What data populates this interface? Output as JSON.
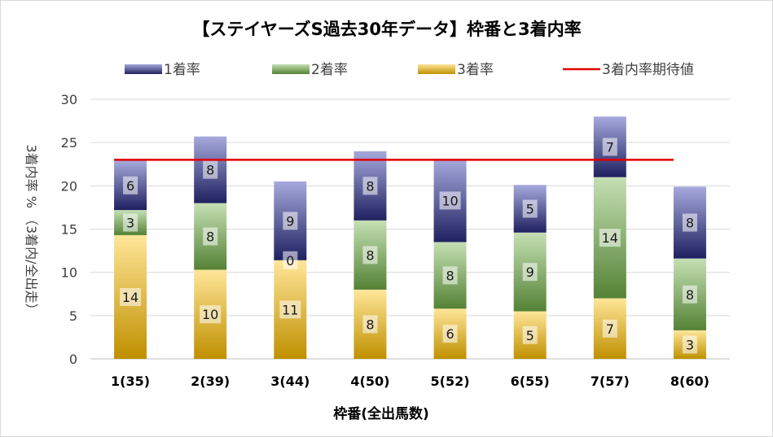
{
  "chart_data": {
    "type": "bar",
    "stacked": true,
    "title": "【ステイヤーズS過去30年データ】枠番と3着内率",
    "xlabel": "枠番(全出馬数)",
    "ylabel": "3着内率 % （3着内/全出走）",
    "ylim": [
      0,
      30
    ],
    "yticks": [
      0,
      5,
      10,
      15,
      20,
      25,
      30
    ],
    "grid": true,
    "legend_position": "top",
    "categories": [
      "1(35)",
      "2(39)",
      "3(44)",
      "4(50)",
      "5(52)",
      "6(55)",
      "7(57)",
      "8(60)"
    ],
    "series": [
      {
        "name": "3着率",
        "color_top": "#ffe699",
        "color_bottom": "#bf9000",
        "values": [
          14.3,
          10.3,
          11.4,
          8.0,
          5.8,
          5.5,
          7.0,
          3.3
        ],
        "labels": [
          "14",
          "10",
          "11",
          "8",
          "6",
          "5",
          "7",
          "3"
        ]
      },
      {
        "name": "2着率",
        "color_top": "#c5e0b4",
        "color_bottom": "#548235",
        "values": [
          2.9,
          7.7,
          0.0,
          8.0,
          7.7,
          9.1,
          14.0,
          8.3
        ],
        "labels": [
          "3",
          "8",
          "0",
          "8",
          "8",
          "9",
          "14",
          "8"
        ]
      },
      {
        "name": "1着率",
        "color_top": "#a6a9dc",
        "color_bottom": "#1f2160",
        "values": [
          5.7,
          7.7,
          9.1,
          8.0,
          9.6,
          5.5,
          7.0,
          8.3
        ],
        "labels": [
          "6",
          "8",
          "9",
          "8",
          "10",
          "5",
          "7",
          "8"
        ]
      }
    ],
    "expected_line": {
      "name": "3着内率期待値",
      "value": 23.0,
      "color": "#e00000"
    },
    "legend_order": [
      "1着率",
      "2着率",
      "3着率",
      "3着内率期待値"
    ]
  }
}
